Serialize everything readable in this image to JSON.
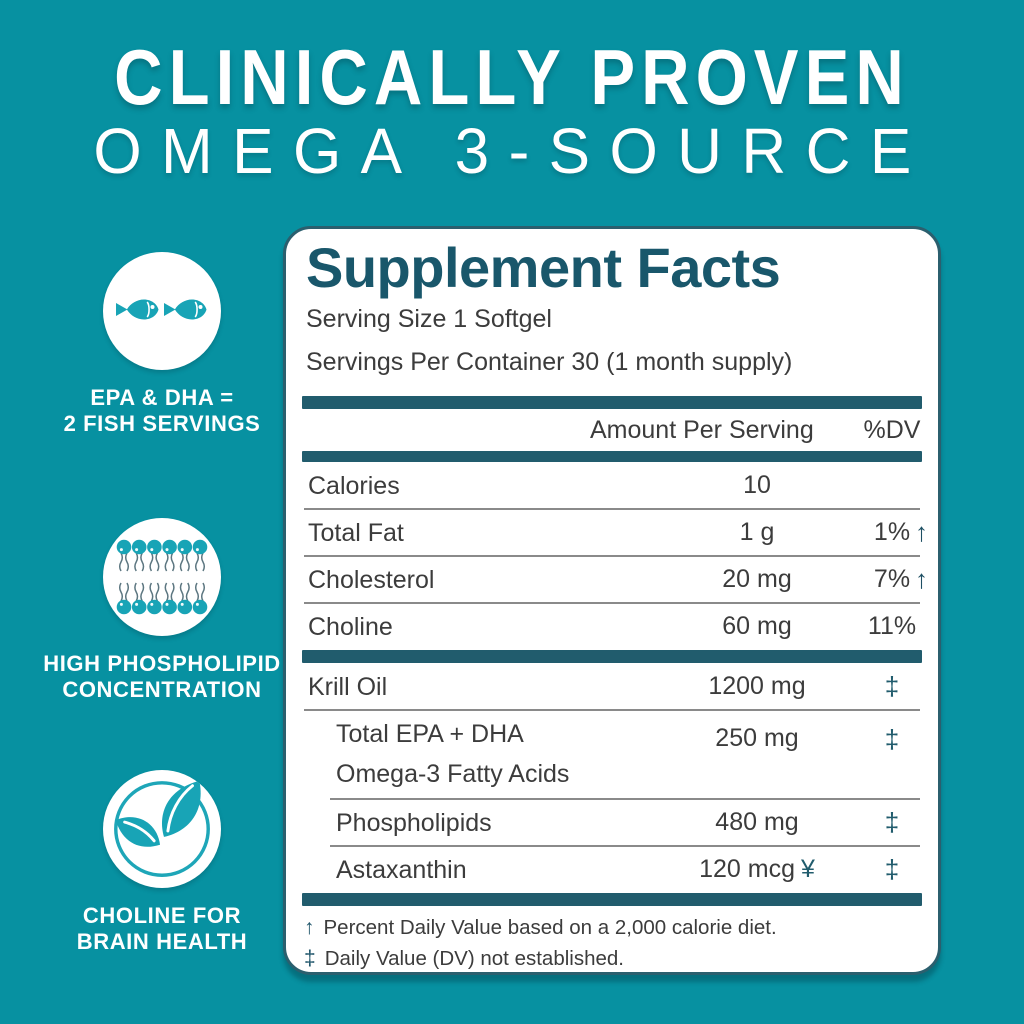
{
  "colors": {
    "background": "#0791a1",
    "icon_teal": "#18a4b6",
    "dark_teal": "#215c6d",
    "title_teal": "#19576b",
    "body_text": "#3c3c3c",
    "separator_gray": "#8a8a8a",
    "white": "#ffffff"
  },
  "hero": {
    "line1": "CLINICALLY PROVEN",
    "line2": "OMEGA 3-SOURCE"
  },
  "badges": [
    {
      "icon": "fish-pair-icon",
      "line1": "EPA & DHA =",
      "line2": "2 FISH SERVINGS"
    },
    {
      "icon": "phospholipid-bilayer-icon",
      "line1": "HIGH PHOSPHOLIPID",
      "line2": "CONCENTRATION"
    },
    {
      "icon": "leaf-icon",
      "line1": "CHOLINE FOR",
      "line2": "BRAIN HEALTH"
    }
  ],
  "panel": {
    "title": "Supplement Facts",
    "serving_size": "Serving Size 1 Softgel",
    "servings_per_container": "Servings Per Container 30 (1 month supply)",
    "columns": {
      "amount": "Amount Per Serving",
      "dv": "%DV"
    },
    "rows": [
      {
        "name": "Calories",
        "amount": "10",
        "dv": "",
        "dv_arrow": false,
        "indent": false,
        "sep": "thin"
      },
      {
        "name": "Total Fat",
        "amount": "1 g",
        "dv": "1%",
        "dv_arrow": true,
        "indent": false,
        "sep": "thin"
      },
      {
        "name": "Cholesterol",
        "amount": "20 mg",
        "dv": "7%",
        "dv_arrow": true,
        "indent": false,
        "sep": "thin"
      },
      {
        "name": "Choline",
        "amount": "60 mg",
        "dv": "11%",
        "dv_arrow": false,
        "indent": false,
        "sep": "thick"
      },
      {
        "name": "Krill Oil",
        "amount": "1200 mg",
        "dv": "‡",
        "dv_arrow": false,
        "indent": false,
        "sep": "thin"
      },
      {
        "name": "Total EPA + DHA",
        "name2": "Omega-3 Fatty Acids",
        "amount": "250 mg",
        "dv": "‡",
        "dv_arrow": false,
        "indent": true,
        "sep": "thin-indent"
      },
      {
        "name": "Phospholipids",
        "amount": "480 mg",
        "dv": "‡",
        "dv_arrow": false,
        "indent": true,
        "sep": "thin-indent"
      },
      {
        "name": "Astaxanthin",
        "amount": "120 mcg",
        "amount_suffix": "¥",
        "dv": "‡",
        "dv_arrow": false,
        "indent": true,
        "sep": "thick"
      }
    ],
    "footnotes": [
      {
        "symbol": "↑",
        "text": "Percent Daily Value based on a 2,000 calorie diet."
      },
      {
        "symbol": "‡",
        "text": "Daily Value (DV) not established."
      }
    ]
  }
}
